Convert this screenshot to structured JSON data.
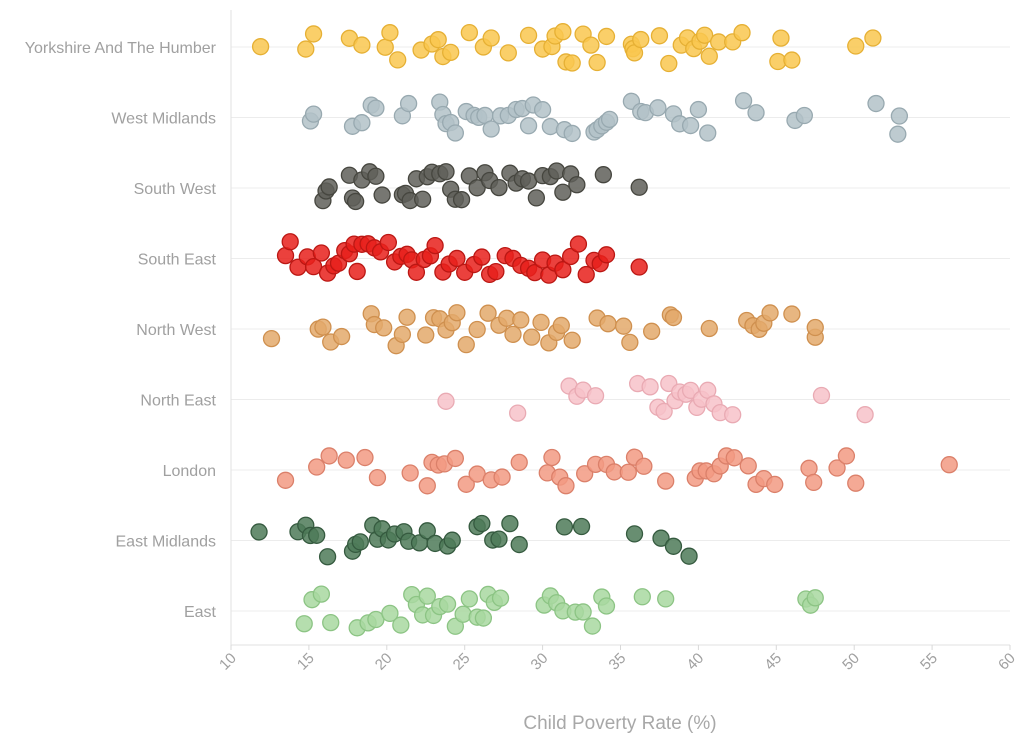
{
  "chart_data": {
    "type": "scatter",
    "subtype": "beeswarm",
    "title": "",
    "xlabel": "Child Poverty Rate (%)",
    "ylabel": "",
    "xlim": [
      10,
      60
    ],
    "xticks": [
      "10",
      "15",
      "20",
      "25",
      "30",
      "35",
      "40",
      "45",
      "50",
      "55",
      "60"
    ],
    "grid": true,
    "categories": [
      "Yorkshire And The Humber",
      "West Midlands",
      "South West",
      "South East",
      "North West",
      "North East",
      "London",
      "East Midlands",
      "East"
    ],
    "series": [
      {
        "name": "Yorkshire And The Humber",
        "color": "#f9c74f",
        "stroke": "#e6b034",
        "values": [
          11.9,
          14.8,
          15.3,
          17.6,
          18.4,
          19.9,
          20.2,
          20.7,
          22.2,
          22.9,
          23.3,
          23.6,
          24.1,
          25.3,
          26.2,
          26.7,
          27.8,
          29.1,
          30.0,
          30.6,
          30.8,
          31.3,
          31.5,
          31.9,
          32.6,
          33.1,
          33.5,
          34.1,
          35.7,
          35.8,
          35.9,
          36.3,
          37.5,
          38.1,
          38.9,
          39.3,
          39.7,
          40.1,
          40.4,
          40.7,
          41.3,
          42.2,
          42.8,
          45.1,
          45.3,
          46.0,
          50.1,
          51.2
        ]
      },
      {
        "name": "West Midlands",
        "color": "#b3c2c8",
        "stroke": "#98a9b0",
        "values": [
          15.1,
          15.3,
          17.8,
          18.4,
          19.0,
          19.3,
          21.0,
          21.4,
          23.4,
          23.6,
          23.8,
          24.1,
          24.4,
          25.1,
          25.6,
          25.9,
          26.3,
          26.7,
          27.3,
          27.8,
          28.3,
          28.7,
          29.1,
          29.4,
          30.0,
          30.5,
          31.4,
          31.9,
          33.3,
          33.5,
          33.8,
          34.1,
          34.3,
          35.7,
          36.3,
          36.6,
          37.4,
          38.4,
          38.8,
          39.5,
          40.0,
          40.6,
          42.9,
          43.7,
          46.2,
          46.8,
          51.4,
          52.8,
          52.9
        ]
      },
      {
        "name": "South West",
        "color": "#5f5f59",
        "stroke": "#46463f",
        "values": [
          15.9,
          16.1,
          16.3,
          17.6,
          17.8,
          18.0,
          18.4,
          18.9,
          19.3,
          19.7,
          21.0,
          21.2,
          21.5,
          21.9,
          22.3,
          22.6,
          22.9,
          23.4,
          23.8,
          24.1,
          24.4,
          24.8,
          25.3,
          25.8,
          26.3,
          26.6,
          27.2,
          27.9,
          28.3,
          28.7,
          29.1,
          29.6,
          30.0,
          30.5,
          30.9,
          31.3,
          31.8,
          32.2,
          33.9,
          36.2
        ]
      },
      {
        "name": "South East",
        "color": "#e8201b",
        "stroke": "#bb1713",
        "values": [
          13.5,
          13.8,
          14.3,
          14.9,
          15.3,
          15.8,
          16.2,
          16.6,
          16.9,
          17.3,
          17.6,
          17.9,
          18.1,
          18.4,
          18.8,
          19.2,
          19.6,
          20.1,
          20.5,
          20.9,
          21.3,
          21.6,
          21.9,
          22.4,
          22.8,
          23.1,
          23.6,
          24.0,
          24.5,
          25.0,
          25.6,
          26.1,
          26.6,
          27.0,
          27.6,
          28.1,
          28.6,
          29.1,
          29.5,
          30.0,
          30.4,
          30.8,
          31.3,
          31.8,
          32.3,
          32.8,
          33.3,
          33.7,
          34.1,
          36.2
        ]
      },
      {
        "name": "North West",
        "color": "#e3a96b",
        "stroke": "#cf904f",
        "values": [
          12.6,
          15.6,
          15.9,
          16.4,
          17.1,
          19.0,
          19.2,
          19.8,
          20.6,
          21.0,
          21.3,
          22.5,
          23.0,
          23.4,
          23.8,
          24.2,
          24.5,
          25.1,
          25.8,
          26.5,
          27.2,
          27.7,
          28.1,
          28.6,
          29.3,
          29.9,
          30.4,
          30.9,
          31.2,
          31.9,
          33.5,
          34.2,
          35.2,
          35.6,
          37.0,
          38.2,
          38.4,
          40.7,
          43.1,
          43.5,
          43.9,
          44.2,
          44.6,
          46.0,
          47.5,
          47.5
        ]
      },
      {
        "name": "North East",
        "color": "#f7c2c9",
        "stroke": "#e9aab3",
        "values": [
          23.8,
          28.4,
          31.7,
          32.2,
          32.6,
          33.4,
          36.1,
          36.9,
          37.4,
          37.8,
          38.1,
          38.5,
          38.8,
          39.2,
          39.5,
          39.9,
          40.2,
          40.6,
          41.0,
          41.4,
          42.2,
          47.9,
          50.7
        ]
      },
      {
        "name": "London",
        "color": "#f29a83",
        "stroke": "#db806a",
        "values": [
          13.5,
          15.5,
          16.3,
          17.4,
          18.6,
          19.4,
          21.5,
          22.6,
          22.9,
          23.3,
          23.7,
          24.4,
          25.1,
          25.8,
          26.7,
          27.4,
          28.5,
          30.3,
          30.6,
          31.1,
          31.5,
          32.7,
          33.4,
          34.1,
          34.6,
          35.5,
          35.9,
          36.5,
          37.9,
          39.8,
          40.1,
          40.5,
          41.0,
          41.4,
          41.8,
          42.3,
          43.2,
          43.7,
          44.2,
          44.9,
          47.1,
          47.4,
          48.9,
          49.5,
          50.1,
          56.1
        ]
      },
      {
        "name": "East Midlands",
        "color": "#4e7a58",
        "stroke": "#355a3f",
        "values": [
          11.8,
          14.3,
          14.8,
          15.1,
          15.5,
          16.2,
          17.8,
          18.0,
          18.3,
          19.1,
          19.4,
          19.7,
          20.1,
          20.5,
          21.1,
          21.4,
          22.1,
          22.6,
          23.1,
          23.9,
          24.2,
          25.8,
          26.1,
          26.8,
          27.2,
          27.9,
          28.5,
          31.4,
          32.5,
          35.9,
          37.6,
          38.4,
          39.4
        ]
      },
      {
        "name": "East",
        "color": "#a8d8a0",
        "stroke": "#8cc484",
        "values": [
          14.7,
          15.2,
          15.8,
          16.4,
          18.1,
          18.8,
          19.3,
          20.2,
          20.9,
          21.6,
          21.9,
          22.3,
          22.6,
          23.0,
          23.4,
          23.9,
          24.4,
          24.9,
          25.3,
          25.8,
          26.2,
          26.5,
          26.9,
          27.3,
          30.1,
          30.5,
          30.9,
          31.3,
          32.1,
          32.6,
          33.2,
          33.8,
          34.1,
          36.4,
          37.9,
          46.9,
          47.2,
          47.5
        ]
      }
    ]
  }
}
